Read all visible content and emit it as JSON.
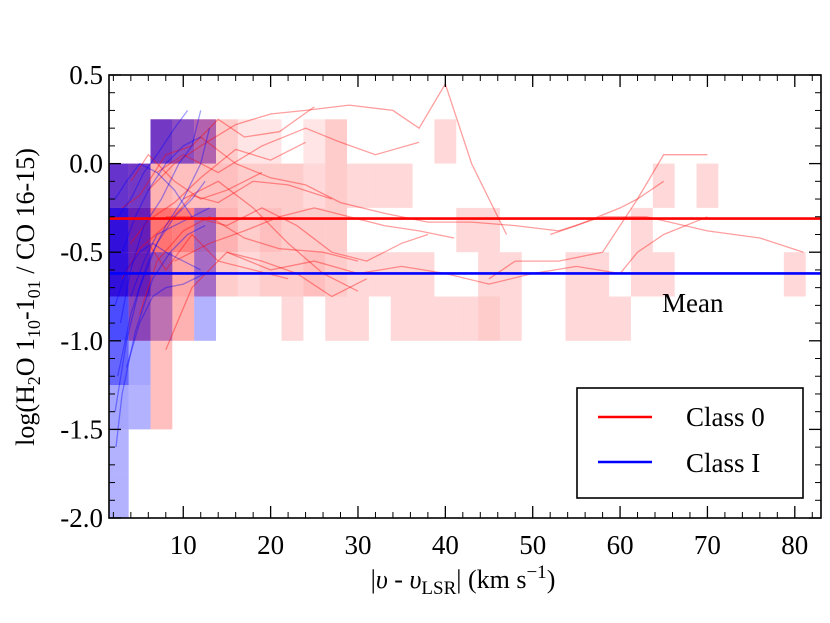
{
  "chart_data": {
    "type": "heatmap",
    "title": "",
    "xlabel_parts": [
      "|",
      "υ",
      " - ",
      "υ",
      "LSR",
      "| (km s",
      "−1",
      ")"
    ],
    "ylabel_parts": [
      "log(H",
      "2",
      "O 1",
      "10",
      "-1",
      "01",
      " / CO 16-15)"
    ],
    "xlim": [
      1.5,
      83
    ],
    "ylim": [
      -2.0,
      0.5
    ],
    "xticks": [
      10,
      20,
      30,
      40,
      50,
      60,
      70,
      80
    ],
    "yticks": [
      0.5,
      0.0,
      -0.5,
      -1.0,
      -1.5,
      -2.0
    ],
    "ytick_labels": [
      "0.5",
      "0.0",
      "-0.5",
      "-1.0",
      "-1.5",
      "-2.0"
    ],
    "grid": false,
    "colors": {
      "class0": "#ff0000",
      "class1": "#0000ff",
      "overlap": "#6e44cc"
    },
    "mean_lines": [
      {
        "series": "Class 0",
        "y": -0.31,
        "color": "#ff0000"
      },
      {
        "series": "Class I",
        "y": -0.62,
        "color": "#0000ff"
      }
    ],
    "annotation": "Mean",
    "legend": {
      "position": "bottom-right",
      "entries": [
        "Class 0",
        "Class I"
      ]
    },
    "bin_width_x": 2.5,
    "bin_height_y": 0.25,
    "class0_bins": [
      {
        "x": 2.5,
        "y": 0.0,
        "d": 0.5
      },
      {
        "x": 2.5,
        "y": -0.25,
        "d": 0.7
      },
      {
        "x": 2.5,
        "y": -0.5,
        "d": 0.7
      },
      {
        "x": 5.0,
        "y": 0.0,
        "d": 0.5
      },
      {
        "x": 5.0,
        "y": -0.25,
        "d": 0.7
      },
      {
        "x": 5.0,
        "y": -0.5,
        "d": 0.7
      },
      {
        "x": 5.0,
        "y": -0.75,
        "d": 0.5
      },
      {
        "x": 7.5,
        "y": 0.25,
        "d": 0.5
      },
      {
        "x": 7.5,
        "y": 0.0,
        "d": 0.3
      },
      {
        "x": 7.5,
        "y": -0.25,
        "d": 0.55
      },
      {
        "x": 7.5,
        "y": -0.5,
        "d": 0.5
      },
      {
        "x": 7.5,
        "y": -0.75,
        "d": 0.4
      },
      {
        "x": 7.5,
        "y": -1.0,
        "d": 0.25
      },
      {
        "x": 7.5,
        "y": -1.25,
        "d": 0.25
      },
      {
        "x": 10.0,
        "y": 0.25,
        "d": 0.45
      },
      {
        "x": 10.0,
        "y": 0.0,
        "d": 0.25
      },
      {
        "x": 10.0,
        "y": -0.25,
        "d": 0.5
      },
      {
        "x": 10.0,
        "y": -0.5,
        "d": 0.35
      },
      {
        "x": 10.0,
        "y": -0.75,
        "d": 0.3
      },
      {
        "x": 12.5,
        "y": 0.25,
        "d": 0.45
      },
      {
        "x": 12.5,
        "y": 0.0,
        "d": 0.25
      },
      {
        "x": 12.5,
        "y": -0.25,
        "d": 0.4
      },
      {
        "x": 12.5,
        "y": -0.5,
        "d": 0.35
      },
      {
        "x": 15.0,
        "y": 0.25,
        "d": 0.2
      },
      {
        "x": 15.0,
        "y": 0.0,
        "d": 0.25
      },
      {
        "x": 15.0,
        "y": -0.25,
        "d": 0.3
      },
      {
        "x": 15.0,
        "y": -0.5,
        "d": 0.2
      },
      {
        "x": 17.5,
        "y": 0.25,
        "d": 0.1
      },
      {
        "x": 17.5,
        "y": 0.0,
        "d": 0.2
      },
      {
        "x": 17.5,
        "y": -0.25,
        "d": 0.2
      },
      {
        "x": 17.5,
        "y": -0.5,
        "d": 0.15
      },
      {
        "x": 20.0,
        "y": 0.25,
        "d": 0.1
      },
      {
        "x": 20.0,
        "y": 0.0,
        "d": 0.2
      },
      {
        "x": 20.0,
        "y": -0.25,
        "d": 0.25
      },
      {
        "x": 20.0,
        "y": -0.5,
        "d": 0.2
      },
      {
        "x": 22.5,
        "y": 0.0,
        "d": 0.2
      },
      {
        "x": 22.5,
        "y": -0.25,
        "d": 0.2
      },
      {
        "x": 22.5,
        "y": -0.5,
        "d": 0.2
      },
      {
        "x": 22.5,
        "y": -0.75,
        "d": 0.15
      },
      {
        "x": 25.0,
        "y": 0.25,
        "d": 0.1
      },
      {
        "x": 25.0,
        "y": 0.0,
        "d": 0.15
      },
      {
        "x": 25.0,
        "y": -0.25,
        "d": 0.2
      },
      {
        "x": 25.0,
        "y": -0.5,
        "d": 0.25
      },
      {
        "x": 27.5,
        "y": 0.25,
        "d": 0.2
      },
      {
        "x": 27.5,
        "y": 0.0,
        "d": 0.2
      },
      {
        "x": 27.5,
        "y": -0.25,
        "d": 0.2
      },
      {
        "x": 27.5,
        "y": -0.5,
        "d": 0.2
      },
      {
        "x": 27.5,
        "y": -0.75,
        "d": 0.15
      },
      {
        "x": 30.0,
        "y": 0.0,
        "d": 0.15
      },
      {
        "x": 30.0,
        "y": -0.5,
        "d": 0.15
      },
      {
        "x": 30.0,
        "y": -0.75,
        "d": 0.15
      },
      {
        "x": 32.5,
        "y": 0.0,
        "d": 0.15
      },
      {
        "x": 32.5,
        "y": -0.5,
        "d": 0.15
      },
      {
        "x": 35.0,
        "y": 0.0,
        "d": 0.15
      },
      {
        "x": 35.0,
        "y": -0.5,
        "d": 0.15
      },
      {
        "x": 35.0,
        "y": -0.75,
        "d": 0.15
      },
      {
        "x": 37.5,
        "y": -0.5,
        "d": 0.15
      },
      {
        "x": 37.5,
        "y": -0.75,
        "d": 0.15
      },
      {
        "x": 40.0,
        "y": 0.25,
        "d": 0.15
      },
      {
        "x": 40.0,
        "y": -0.75,
        "d": 0.15
      },
      {
        "x": 42.5,
        "y": -0.25,
        "d": 0.15
      },
      {
        "x": 42.5,
        "y": -0.75,
        "d": 0.15
      },
      {
        "x": 45.0,
        "y": -0.25,
        "d": 0.15
      },
      {
        "x": 45.0,
        "y": -0.5,
        "d": 0.15
      },
      {
        "x": 45.0,
        "y": -0.75,
        "d": 0.2
      },
      {
        "x": 47.5,
        "y": -0.5,
        "d": 0.15
      },
      {
        "x": 47.5,
        "y": -0.75,
        "d": 0.15
      },
      {
        "x": 55.0,
        "y": -0.5,
        "d": 0.15
      },
      {
        "x": 55.0,
        "y": -0.75,
        "d": 0.15
      },
      {
        "x": 57.5,
        "y": -0.5,
        "d": 0.15
      },
      {
        "x": 57.5,
        "y": -0.75,
        "d": 0.15
      },
      {
        "x": 60.0,
        "y": -0.75,
        "d": 0.15
      },
      {
        "x": 62.5,
        "y": -0.25,
        "d": 0.15
      },
      {
        "x": 62.5,
        "y": -0.5,
        "d": 0.15
      },
      {
        "x": 65.0,
        "y": 0.0,
        "d": 0.15
      },
      {
        "x": 65.0,
        "y": -0.5,
        "d": 0.15
      },
      {
        "x": 70.0,
        "y": 0.0,
        "d": 0.15
      },
      {
        "x": 80.0,
        "y": -0.5,
        "d": 0.15
      }
    ],
    "class1_bins": [
      {
        "x": 2.5,
        "y": 0.0,
        "d": 0.6
      },
      {
        "x": 2.5,
        "y": -0.25,
        "d": 0.8
      },
      {
        "x": 2.5,
        "y": -0.5,
        "d": 0.8
      },
      {
        "x": 2.5,
        "y": -0.75,
        "d": 0.7
      },
      {
        "x": 2.5,
        "y": -1.0,
        "d": 0.6
      },
      {
        "x": 2.5,
        "y": -1.25,
        "d": 0.35
      },
      {
        "x": 2.5,
        "y": -1.5,
        "d": 0.3
      },
      {
        "x": 2.5,
        "y": -1.75,
        "d": 0.3
      },
      {
        "x": 5.0,
        "y": 0.0,
        "d": 0.55
      },
      {
        "x": 5.0,
        "y": -0.25,
        "d": 0.6
      },
      {
        "x": 5.0,
        "y": -0.5,
        "d": 0.6
      },
      {
        "x": 5.0,
        "y": -0.75,
        "d": 0.45
      },
      {
        "x": 5.0,
        "y": -1.0,
        "d": 0.35
      },
      {
        "x": 5.0,
        "y": -1.25,
        "d": 0.3
      },
      {
        "x": 7.5,
        "y": 0.25,
        "d": 0.55
      },
      {
        "x": 7.5,
        "y": -0.5,
        "d": 0.4
      },
      {
        "x": 7.5,
        "y": -0.75,
        "d": 0.25
      },
      {
        "x": 10.0,
        "y": 0.25,
        "d": 0.45
      },
      {
        "x": 12.5,
        "y": 0.25,
        "d": 0.3
      },
      {
        "x": 12.5,
        "y": -0.25,
        "d": 0.35
      },
      {
        "x": 12.5,
        "y": -0.5,
        "d": 0.35
      },
      {
        "x": 12.5,
        "y": -0.75,
        "d": 0.3
      }
    ],
    "class0_tracks": [
      [
        [
          3,
          -0.25
        ],
        [
          5,
          -0.18
        ],
        [
          8,
          0.05
        ],
        [
          11,
          0.1
        ],
        [
          14,
          0.25
        ],
        [
          17,
          0.15
        ],
        [
          21,
          0.18
        ],
        [
          25,
          0.32
        ]
      ],
      [
        [
          4,
          -0.45
        ],
        [
          6,
          -0.32
        ],
        [
          9,
          -0.22
        ],
        [
          12,
          -0.08
        ],
        [
          16,
          0.08
        ],
        [
          20,
          0.02
        ],
        [
          24,
          0.12
        ]
      ],
      [
        [
          3,
          -0.65
        ],
        [
          5,
          -0.48
        ],
        [
          8,
          -0.35
        ],
        [
          11,
          -0.18
        ],
        [
          14,
          -0.22
        ],
        [
          18,
          -0.1
        ],
        [
          22,
          -0.12
        ],
        [
          27,
          -0.2
        ]
      ],
      [
        [
          5,
          -0.85
        ],
        [
          7,
          -0.55
        ],
        [
          10,
          -0.38
        ],
        [
          13,
          -0.3
        ],
        [
          17,
          -0.42
        ],
        [
          21,
          -0.48
        ],
        [
          26,
          -0.5
        ],
        [
          30,
          -0.55
        ]
      ],
      [
        [
          6,
          -0.15
        ],
        [
          9,
          0.0
        ],
        [
          12,
          0.1
        ],
        [
          16,
          0.22
        ],
        [
          20,
          0.28
        ],
        [
          24,
          0.3
        ],
        [
          29,
          0.33
        ],
        [
          34,
          0.3
        ],
        [
          37,
          0.2
        ],
        [
          40,
          0.45
        ],
        [
          43,
          0.0
        ],
        [
          47,
          -0.4
        ]
      ],
      [
        [
          7,
          -0.05
        ],
        [
          10,
          0.05
        ],
        [
          14,
          -0.05
        ],
        [
          19,
          0.1
        ],
        [
          24,
          0.2
        ],
        [
          28,
          0.12
        ],
        [
          32,
          0.05
        ],
        [
          37,
          0.12
        ]
      ],
      [
        [
          8,
          -0.3
        ],
        [
          11,
          -0.3
        ],
        [
          15,
          -0.35
        ],
        [
          19,
          -0.25
        ],
        [
          23,
          -0.35
        ],
        [
          27,
          -0.5
        ],
        [
          31,
          -0.55
        ],
        [
          35,
          -0.45
        ],
        [
          38,
          -0.4
        ]
      ],
      [
        [
          8,
          -1.05
        ],
        [
          11,
          -0.7
        ],
        [
          15,
          -0.5
        ],
        [
          19,
          -0.55
        ],
        [
          23,
          -0.62
        ],
        [
          27,
          -0.75
        ],
        [
          31,
          -0.65
        ]
      ],
      [
        [
          9,
          -0.55
        ],
        [
          13,
          -0.45
        ],
        [
          17,
          -0.38
        ],
        [
          21,
          -0.3
        ],
        [
          25,
          -0.25
        ],
        [
          29,
          -0.3
        ],
        [
          33,
          -0.35
        ],
        [
          37,
          -0.38
        ],
        [
          41,
          -0.42
        ]
      ],
      [
        [
          10,
          -0.2
        ],
        [
          14,
          -0.1
        ],
        [
          18,
          -0.25
        ],
        [
          22,
          -0.45
        ],
        [
          26,
          -0.62
        ],
        [
          30,
          -0.72
        ]
      ],
      [
        [
          12,
          0.15
        ],
        [
          16,
          0.0
        ],
        [
          20,
          -0.08
        ],
        [
          24,
          -0.12
        ],
        [
          28,
          -0.22
        ],
        [
          33,
          -0.28
        ],
        [
          38,
          -0.33
        ],
        [
          43,
          -0.33
        ],
        [
          48,
          -0.35
        ],
        [
          53,
          -0.38
        ],
        [
          58,
          -0.3
        ],
        [
          63,
          -0.3
        ],
        [
          70,
          -0.38
        ],
        [
          76,
          -0.42
        ],
        [
          81,
          -0.5
        ]
      ],
      [
        [
          15,
          -0.5
        ],
        [
          20,
          -0.6
        ],
        [
          25,
          -0.55
        ],
        [
          30,
          -0.62
        ],
        [
          35,
          -0.58
        ],
        [
          40,
          -0.62
        ],
        [
          45,
          -0.68
        ],
        [
          50,
          -0.62
        ],
        [
          55,
          -0.58
        ],
        [
          60,
          -0.62
        ],
        [
          62,
          -0.5
        ],
        [
          65,
          -0.4
        ],
        [
          70,
          -0.3
        ]
      ],
      [
        [
          45,
          -0.65
        ],
        [
          48,
          -0.55
        ],
        [
          53,
          -0.55
        ],
        [
          58,
          -0.5
        ],
        [
          62,
          -0.2
        ],
        [
          65,
          0.05
        ],
        [
          70,
          0.05
        ]
      ],
      [
        [
          52,
          -0.4
        ],
        [
          55,
          -0.35
        ],
        [
          60,
          -0.25
        ],
        [
          62,
          -0.2
        ],
        [
          65,
          -0.1
        ]
      ],
      [
        [
          6,
          -0.45
        ],
        [
          8,
          -0.6
        ],
        [
          11,
          -0.4
        ],
        [
          14,
          -0.55
        ],
        [
          18,
          -0.6
        ],
        [
          22,
          -0.65
        ]
      ],
      [
        [
          4,
          -0.1
        ],
        [
          6,
          0.05
        ],
        [
          9,
          -0.1
        ],
        [
          12,
          -0.2
        ],
        [
          15,
          -0.15
        ],
        [
          19,
          -0.05
        ]
      ]
    ],
    "class1_tracks": [
      [
        [
          2.2,
          -1.4
        ],
        [
          3.5,
          -1.0
        ],
        [
          5,
          -0.7
        ],
        [
          7,
          -0.45
        ],
        [
          9,
          -0.3
        ],
        [
          11,
          -0.2
        ],
        [
          12.5,
          -0.1
        ]
      ],
      [
        [
          2.5,
          -1.2
        ],
        [
          4,
          -0.85
        ],
        [
          6,
          -0.55
        ],
        [
          8,
          -0.35
        ],
        [
          10,
          -0.2
        ],
        [
          12,
          0.0
        ],
        [
          13,
          0.2
        ]
      ],
      [
        [
          2.3,
          -1.6
        ],
        [
          3,
          -1.3
        ],
        [
          4.5,
          -0.95
        ],
        [
          6.5,
          -0.65
        ],
        [
          8.5,
          -0.5
        ],
        [
          10.5,
          -0.4
        ],
        [
          12.5,
          -0.35
        ]
      ],
      [
        [
          2.8,
          -0.9
        ],
        [
          4,
          -0.6
        ],
        [
          5.5,
          -0.35
        ],
        [
          7.5,
          -0.2
        ],
        [
          9.5,
          0.0
        ],
        [
          11,
          0.1
        ],
        [
          12,
          0.3
        ]
      ],
      [
        [
          3,
          -0.5
        ],
        [
          4.5,
          -0.3
        ],
        [
          6,
          -0.15
        ],
        [
          8,
          0.0
        ],
        [
          10,
          0.1
        ],
        [
          12,
          0.15
        ]
      ],
      [
        [
          2.2,
          -0.8
        ],
        [
          3.5,
          -0.6
        ],
        [
          5,
          -0.5
        ],
        [
          6.5,
          -0.45
        ],
        [
          8,
          -0.5
        ],
        [
          10,
          -0.55
        ],
        [
          12,
          -0.6
        ]
      ],
      [
        [
          2.5,
          -0.3
        ],
        [
          4,
          -0.2
        ],
        [
          5.5,
          -0.05
        ],
        [
          7,
          0.05
        ],
        [
          9,
          0.2
        ],
        [
          10.5,
          0.3
        ]
      ],
      [
        [
          3.5,
          -1.15
        ],
        [
          5,
          -0.9
        ],
        [
          6.5,
          -0.75
        ],
        [
          8,
          -0.7
        ],
        [
          10,
          -0.68
        ],
        [
          12.5,
          -0.62
        ]
      ],
      [
        [
          2.2,
          -0.2
        ],
        [
          3.5,
          -0.1
        ],
        [
          5,
          0.0
        ],
        [
          7,
          -0.05
        ],
        [
          9,
          -0.15
        ],
        [
          11,
          -0.3
        ]
      ],
      [
        [
          4,
          -0.75
        ],
        [
          5.5,
          -0.55
        ],
        [
          7,
          -0.4
        ],
        [
          9,
          -0.35
        ],
        [
          11,
          -0.3
        ],
        [
          13,
          -0.25
        ]
      ]
    ]
  }
}
